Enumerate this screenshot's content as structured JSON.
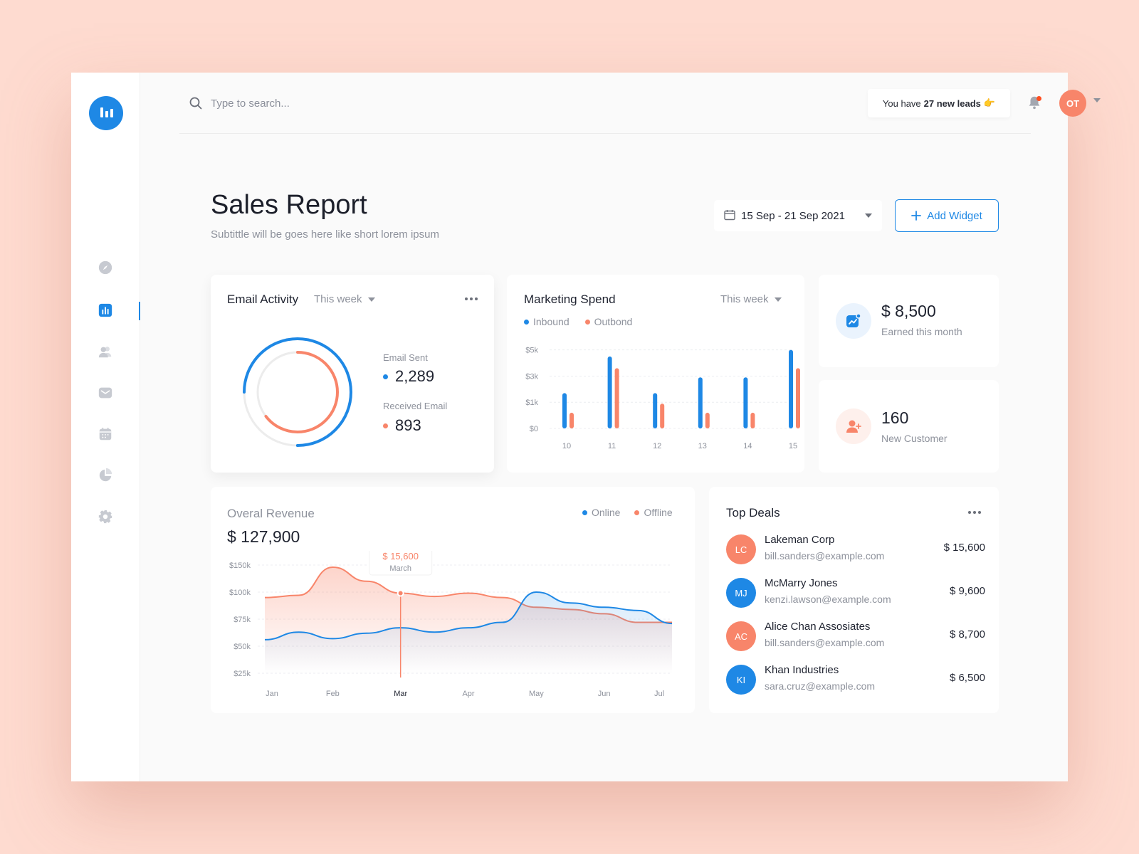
{
  "search": {
    "placeholder": "Type to search..."
  },
  "header": {
    "leads_prefix": "You have",
    "leads_count": "27 new leads",
    "leads_emoji": "👉",
    "avatar_initials": "OT"
  },
  "page": {
    "title": "Sales Report",
    "subtitle": "Subtittle will be goes here like short lorem ipsum",
    "date_range": "15 Sep - 21 Sep 2021",
    "add_widget_label": "Add Widget"
  },
  "sidebar": {
    "items": [
      {
        "icon": "compass-icon",
        "name": "explore"
      },
      {
        "icon": "bar-chart-icon",
        "name": "reports",
        "active": true
      },
      {
        "icon": "users-icon",
        "name": "customers"
      },
      {
        "icon": "mail-icon",
        "name": "messages"
      },
      {
        "icon": "calendar-icon",
        "name": "calendar"
      },
      {
        "icon": "pie-chart-icon",
        "name": "analytics"
      },
      {
        "icon": "gear-icon",
        "name": "settings"
      }
    ]
  },
  "email_activity": {
    "title": "Email Activity",
    "period": "This week",
    "sent_label": "Email Sent",
    "sent_value": "2,289",
    "received_label": "Received Email",
    "received_value": "893",
    "colors": {
      "sent": "#1e88e5",
      "received": "#f8856a"
    }
  },
  "marketing_spend": {
    "title": "Marketing Spend",
    "period": "This week",
    "legend": {
      "inbound": "Inbound",
      "outbound": "Outbond"
    }
  },
  "kpis": {
    "earned": {
      "value": "$ 8,500",
      "label": "Earned this month"
    },
    "customers": {
      "value": "160",
      "label": "New Customer"
    }
  },
  "revenue": {
    "title": "Overal Revenue",
    "total": "$ 127,900",
    "legend": {
      "online": "Online",
      "offline": "Offline"
    },
    "tooltip": {
      "value": "$ 15,600",
      "label": "March"
    }
  },
  "top_deals": {
    "title": "Top Deals",
    "rows": [
      {
        "initials": "LC",
        "name": "Lakeman Corp",
        "email": "bill.sanders@example.com",
        "amount": "$ 15,600",
        "color": "#f8856a"
      },
      {
        "initials": "MJ",
        "name": "McMarry Jones",
        "email": "kenzi.lawson@example.com",
        "amount": "$ 9,600",
        "color": "#1e88e5"
      },
      {
        "initials": "AC",
        "name": "Alice Chan Assosiates",
        "email": "bill.sanders@example.com",
        "amount": "$ 8,700",
        "color": "#f8856a"
      },
      {
        "initials": "KI",
        "name": "Khan Industries",
        "email": "sara.cruz@example.com",
        "amount": "$ 6,500",
        "color": "#1e88e5"
      }
    ]
  },
  "chart_data": [
    {
      "type": "pie",
      "categories": [
        "Email Sent",
        "Received Email"
      ],
      "values": [
        2289,
        893
      ],
      "colors": [
        "#1e88e5",
        "#f8856a"
      ]
    },
    {
      "type": "bar",
      "categories": [
        "10",
        "11",
        "12",
        "13",
        "14",
        "15"
      ],
      "series": [
        {
          "name": "Inbound",
          "values": [
            2.7,
            5.5,
            2.7,
            3.9,
            3.9,
            6.0
          ],
          "color": "#1e88e5"
        },
        {
          "name": "Outbond",
          "values": [
            1.2,
            4.6,
            1.9,
            1.2,
            1.2,
            4.6
          ],
          "color": "#f8856a"
        }
      ],
      "yticks": [
        "$0",
        "$1k",
        "$3k",
        "$5k"
      ],
      "grid": true
    },
    {
      "type": "line",
      "x": [
        "Jan",
        "Feb",
        "Mar",
        "Apr",
        "May",
        "Jun",
        "Jul"
      ],
      "series": [
        {
          "name": "Online",
          "color": "#1e88e5",
          "values": [
            [
              0,
              56
            ],
            [
              0.5,
              63
            ],
            [
              1,
              57
            ],
            [
              1.5,
              62
            ],
            [
              2,
              67
            ],
            [
              2.5,
              63
            ],
            [
              3,
              67
            ],
            [
              3.5,
              72
            ],
            [
              4,
              100
            ],
            [
              4.5,
              90
            ],
            [
              5,
              86
            ],
            [
              5.5,
              83
            ],
            [
              6,
              71
            ]
          ]
        },
        {
          "name": "Offline",
          "color": "#f8856a",
          "values": [
            [
              0,
              95
            ],
            [
              0.5,
              97
            ],
            [
              1,
              123
            ],
            [
              1.5,
              110
            ],
            [
              2,
              99
            ],
            [
              2.5,
              96
            ],
            [
              3,
              99
            ],
            [
              3.5,
              95
            ],
            [
              4,
              86
            ],
            [
              4.5,
              84
            ],
            [
              5,
              80
            ],
            [
              5.5,
              72
            ],
            [
              6,
              72
            ]
          ]
        }
      ],
      "yticks": [
        "$25k",
        "$50k",
        "$75k",
        "$100k",
        "$150k"
      ],
      "highlight": {
        "x": "Mar",
        "value": "$ 15,600",
        "label": "March"
      },
      "grid": true
    }
  ]
}
